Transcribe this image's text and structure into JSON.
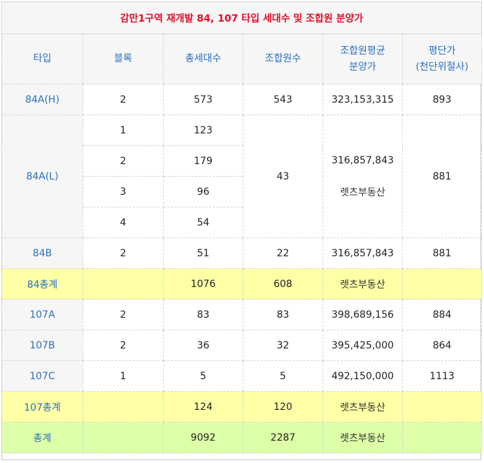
{
  "title": "감만1구역 재개발 84, 107 타입 세대수 및 조합원 분양가",
  "headers": {
    "type": "타입",
    "block": "블록",
    "households": "총세대수",
    "members": "조합원수",
    "price_line1": "조합원평균",
    "price_line2": "분양가",
    "pyeong_line1": "평단가",
    "pyeong_line2": "(천단위절사)"
  },
  "rows": {
    "r84AH": {
      "type": "84A(H)",
      "block": "2",
      "households": "573",
      "members": "543",
      "price": "323,153,315",
      "pyeong": "893"
    },
    "r84AL": {
      "type": "84A(L)",
      "blocks": [
        {
          "block": "1",
          "households": "123"
        },
        {
          "block": "2",
          "households": "179"
        },
        {
          "block": "3",
          "households": "96"
        },
        {
          "block": "4",
          "households": "54"
        }
      ],
      "members": "43",
      "price": "316,857,843",
      "watermark": "렛츠부동산",
      "pyeong": "881"
    },
    "r84B": {
      "type": "84B",
      "block": "2",
      "households": "51",
      "members": "22",
      "price": "316,857,843",
      "pyeong": "881"
    },
    "sum84": {
      "type": "84총계",
      "households": "1076",
      "members": "608",
      "watermark": "렛츠부동산"
    },
    "r107A": {
      "type": "107A",
      "block": "2",
      "households": "83",
      "members": "83",
      "price": "398,689,156",
      "pyeong": "884"
    },
    "r107B": {
      "type": "107B",
      "block": "2",
      "households": "36",
      "members": "32",
      "price": "395,425,000",
      "pyeong": "864"
    },
    "r107C": {
      "type": "107C",
      "block": "1",
      "households": "5",
      "members": "5",
      "price": "492,150,000",
      "pyeong": "1113"
    },
    "sum107": {
      "type": "107총계",
      "households": "124",
      "members": "120",
      "watermark": "렛츠부동산"
    },
    "total": {
      "type": "총계",
      "households": "9092",
      "members": "2287",
      "watermark": "렛츠부동산"
    }
  },
  "colors": {
    "title": "#e0102a",
    "header_text": "#2a6fc0",
    "subtotal_bg": "#ffffa6",
    "total_bg": "#ddffa8",
    "header_bg": "#f6f6f6"
  }
}
